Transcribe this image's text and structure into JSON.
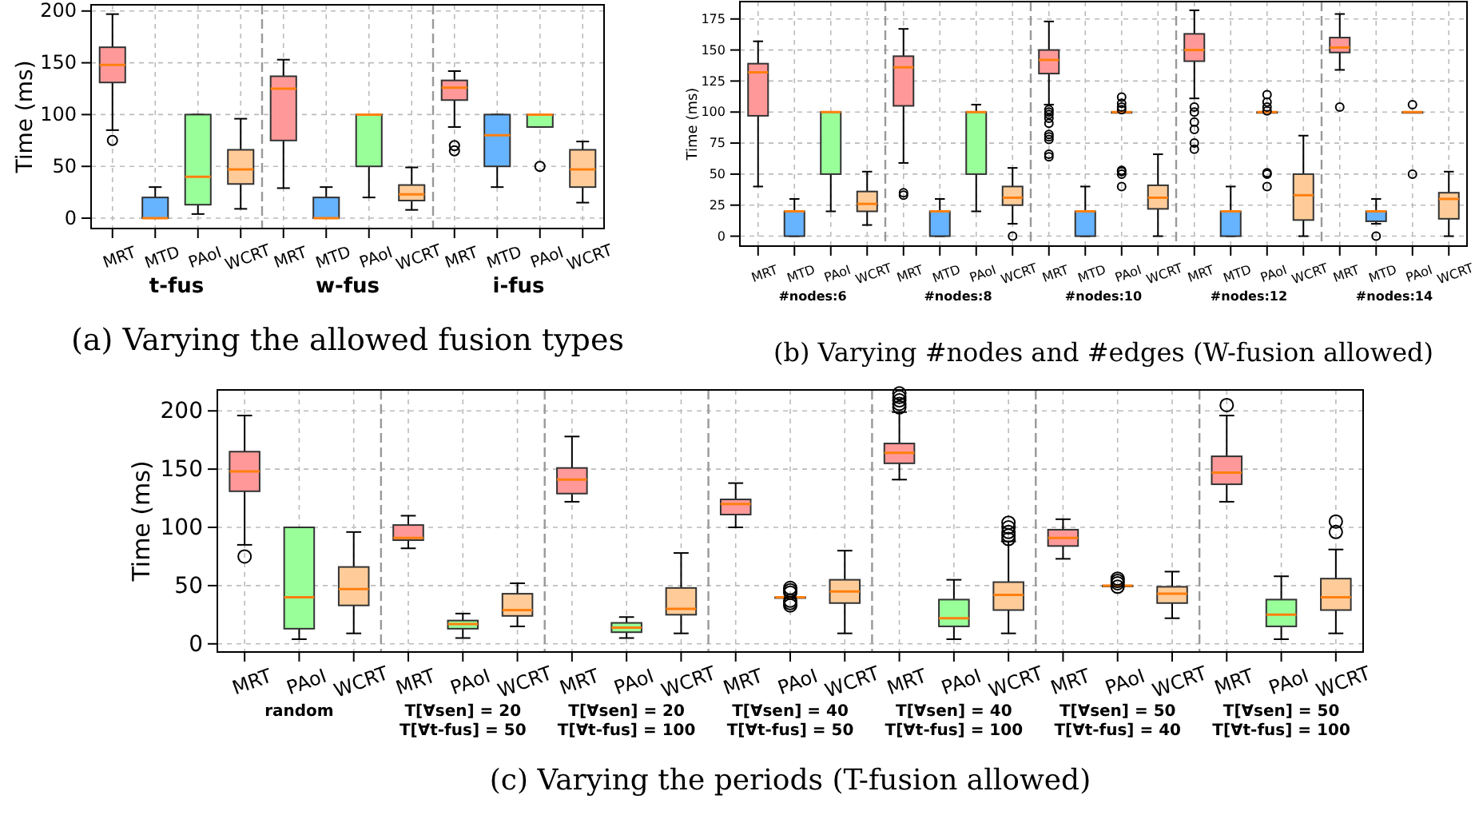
{
  "chart_data": [
    {
      "type": "box",
      "title": "(a) Varying the allowed fusion types",
      "ylabel": "Time (ms)",
      "ylim": [
        -10,
        206
      ],
      "yticks": [
        0,
        50,
        100,
        150,
        200
      ],
      "grid": true,
      "categories": [
        "MRT",
        "MTD",
        "PAoI",
        "WCRT",
        "MRT",
        "MTD",
        "PAoI",
        "WCRT",
        "MRT",
        "MTD",
        "PAoI",
        "WCRT"
      ],
      "colors": [
        "#ff9999",
        "#66b3ff",
        "#99ff99",
        "#ffcc99",
        "#ff9999",
        "#66b3ff",
        "#99ff99",
        "#ffcc99",
        "#ff9999",
        "#66b3ff",
        "#99ff99",
        "#ffcc99"
      ],
      "annotations": [
        "t-fus",
        "w-fus",
        "i-fus"
      ],
      "boxes": [
        {
          "low": 85,
          "q1": 131,
          "median": 148,
          "q3": 165,
          "high": 197,
          "outliers": [
            75
          ]
        },
        {
          "low": 0,
          "q1": 0,
          "median": 0,
          "q3": 20,
          "high": 30
        },
        {
          "low": 4,
          "q1": 13,
          "median": 40,
          "q3": 100,
          "high": 100
        },
        {
          "low": 9,
          "q1": 33,
          "median": 47,
          "q3": 66,
          "high": 96
        },
        {
          "low": 29,
          "q1": 75,
          "median": 125,
          "q3": 137,
          "high": 153
        },
        {
          "low": 0,
          "q1": 0,
          "median": 0,
          "q3": 20,
          "high": 30
        },
        {
          "low": 20,
          "q1": 50,
          "median": 100,
          "q3": 100,
          "high": 100
        },
        {
          "low": 8,
          "q1": 17,
          "median": 23,
          "q3": 32,
          "high": 49
        },
        {
          "low": 88,
          "q1": 114,
          "median": 126,
          "q3": 133,
          "high": 142,
          "outliers": [
            65,
            70
          ]
        },
        {
          "low": 30,
          "q1": 50,
          "median": 80,
          "q3": 100,
          "high": 100
        },
        {
          "low": 88,
          "q1": 88,
          "median": 100,
          "q3": 100,
          "high": 100,
          "outliers": [
            50
          ]
        },
        {
          "low": 15,
          "q1": 30,
          "median": 47,
          "q3": 66,
          "high": 74
        }
      ]
    },
    {
      "type": "box",
      "title": "(b) Varying #nodes and #edges (W-fusion allowed)",
      "ylabel": "Time (ms)",
      "ylim": [
        -8,
        189
      ],
      "yticks": [
        0,
        25,
        50,
        75,
        100,
        125,
        150,
        175
      ],
      "grid": true,
      "categories": [
        "MRT",
        "MTD",
        "PAoI",
        "WCRT",
        "MRT",
        "MTD",
        "PAoI",
        "WCRT",
        "MRT",
        "MTD",
        "PAoI",
        "WCRT",
        "MRT",
        "MTD",
        "PAoI",
        "WCRT",
        "MRT",
        "MTD",
        "PAoI",
        "WCRT"
      ],
      "colors": [
        "#ff9999",
        "#66b3ff",
        "#99ff99",
        "#ffcc99",
        "#ff9999",
        "#66b3ff",
        "#99ff99",
        "#ffcc99",
        "#ff9999",
        "#66b3ff",
        "#99ff99",
        "#ffcc99",
        "#ff9999",
        "#66b3ff",
        "#99ff99",
        "#ffcc99",
        "#ff9999",
        "#66b3ff",
        "#99ff99",
        "#ffcc99"
      ],
      "annotations": [
        "#nodes:6",
        "#nodes:8",
        "#nodes:10",
        "#nodes:12",
        "#nodes:14"
      ],
      "boxes": [
        {
          "low": 40,
          "q1": 97,
          "median": 132,
          "q3": 139,
          "high": 157
        },
        {
          "low": 0,
          "q1": 0,
          "median": 20,
          "q3": 20,
          "high": 30
        },
        {
          "low": 20,
          "q1": 50,
          "median": 100,
          "q3": 100,
          "high": 100
        },
        {
          "low": 9,
          "q1": 20,
          "median": 26,
          "q3": 36,
          "high": 52
        },
        {
          "low": 59,
          "q1": 105,
          "median": 136,
          "q3": 145,
          "high": 167,
          "outliers": [
            33,
            35
          ]
        },
        {
          "low": 0,
          "q1": 0,
          "median": 20,
          "q3": 20,
          "high": 30
        },
        {
          "low": 20,
          "q1": 50,
          "median": 100,
          "q3": 100,
          "high": 106
        },
        {
          "low": 10,
          "q1": 25,
          "median": 31,
          "q3": 40,
          "high": 55,
          "outliers": [
            0
          ]
        },
        {
          "low": 106,
          "q1": 131,
          "median": 142,
          "q3": 150,
          "high": 173,
          "outliers": [
            64,
            66,
            78,
            80,
            82,
            91,
            95,
            98,
            100,
            102
          ]
        },
        {
          "low": 0,
          "q1": 0,
          "median": 20,
          "q3": 20,
          "high": 40
        },
        {
          "low": 100,
          "q1": 100,
          "median": 100,
          "q3": 100,
          "high": 100,
          "outliers": [
            40,
            50,
            52,
            53,
            102,
            104,
            107,
            112
          ]
        },
        {
          "low": 0,
          "q1": 22,
          "median": 31,
          "q3": 41,
          "high": 66
        },
        {
          "low": 111,
          "q1": 141,
          "median": 150,
          "q3": 163,
          "high": 182,
          "outliers": [
            70,
            75,
            86,
            92,
            100,
            104
          ]
        },
        {
          "low": 0,
          "q1": 0,
          "median": 20,
          "q3": 20,
          "high": 40
        },
        {
          "low": 100,
          "q1": 100,
          "median": 100,
          "q3": 100,
          "high": 100,
          "outliers": [
            40,
            50,
            51,
            101,
            104,
            108,
            114
          ]
        },
        {
          "low": 0,
          "q1": 13,
          "median": 33,
          "q3": 50,
          "high": 81
        },
        {
          "low": 134,
          "q1": 148,
          "median": 152,
          "q3": 160,
          "high": 179,
          "outliers": [
            104
          ]
        },
        {
          "low": 10,
          "q1": 12,
          "median": 20,
          "q3": 20,
          "high": 30,
          "outliers": [
            0
          ]
        },
        {
          "low": 100,
          "q1": 100,
          "median": 100,
          "q3": 100,
          "high": 100,
          "outliers": [
            50,
            106
          ]
        },
        {
          "low": 0,
          "q1": 14,
          "median": 30,
          "q3": 35,
          "high": 52
        }
      ]
    },
    {
      "type": "box",
      "title": "(c) Varying the periods (T-fusion allowed)",
      "ylabel": "Time (ms)",
      "ylim": [
        -7,
        218
      ],
      "yticks": [
        0,
        50,
        100,
        150,
        200
      ],
      "grid": true,
      "categories": [
        "MRT",
        "PAoI",
        "WCRT",
        "MRT",
        "PAoI",
        "WCRT",
        "MRT",
        "PAoI",
        "WCRT",
        "MRT",
        "PAoI",
        "WCRT",
        "MRT",
        "PAoI",
        "WCRT",
        "MRT",
        "PAoI",
        "WCRT",
        "MRT",
        "PAoI",
        "WCRT"
      ],
      "colors": [
        "#ff9999",
        "#99ff99",
        "#ffcc99",
        "#ff9999",
        "#99ff99",
        "#ffcc99",
        "#ff9999",
        "#99ff99",
        "#ffcc99",
        "#ff9999",
        "#99ff99",
        "#ffcc99",
        "#ff9999",
        "#99ff99",
        "#ffcc99",
        "#ff9999",
        "#99ff99",
        "#ffcc99",
        "#ff9999",
        "#99ff99",
        "#ffcc99"
      ],
      "annotations": [
        "random",
        "T[∀sen] = 20\nT[∀t-fus] = 50",
        "T[∀sen] = 20\nT[∀t-fus] = 100",
        "T[∀sen] = 40\nT[∀t-fus] = 50",
        "T[∀sen] = 40\nT[∀t-fus] = 100",
        "T[∀sen] = 50\nT[∀t-fus] = 40",
        "T[∀sen] = 50\nT[∀t-fus] = 100"
      ],
      "boxes": [
        {
          "low": 85,
          "q1": 131,
          "median": 148,
          "q3": 165,
          "high": 196,
          "outliers": [
            75
          ]
        },
        {
          "low": 4,
          "q1": 13,
          "median": 40,
          "q3": 100,
          "high": 100
        },
        {
          "low": 9,
          "q1": 33,
          "median": 47,
          "q3": 66,
          "high": 96
        },
        {
          "low": 82,
          "q1": 89,
          "median": 91,
          "q3": 102,
          "high": 110
        },
        {
          "low": 5,
          "q1": 13,
          "median": 17,
          "q3": 20,
          "high": 26
        },
        {
          "low": 15,
          "q1": 24,
          "median": 29,
          "q3": 43,
          "high": 52
        },
        {
          "low": 122,
          "q1": 129,
          "median": 141,
          "q3": 151,
          "high": 178
        },
        {
          "low": 5,
          "q1": 10,
          "median": 14,
          "q3": 18,
          "high": 23
        },
        {
          "low": 9,
          "q1": 25,
          "median": 30,
          "q3": 48,
          "high": 78
        },
        {
          "low": 100,
          "q1": 111,
          "median": 120,
          "q3": 124,
          "high": 138
        },
        {
          "low": 40,
          "q1": 40,
          "median": 40,
          "q3": 40,
          "high": 40,
          "outliers": [
            33,
            35,
            37,
            44,
            46,
            48
          ]
        },
        {
          "low": 9,
          "q1": 35,
          "median": 45,
          "q3": 55,
          "high": 80
        },
        {
          "low": 141,
          "q1": 155,
          "median": 164,
          "q3": 172,
          "high": 199,
          "outliers": [
            203,
            206,
            209,
            212,
            215
          ]
        },
        {
          "low": 4,
          "q1": 15,
          "median": 22,
          "q3": 38,
          "high": 55
        },
        {
          "low": 9,
          "q1": 29,
          "median": 42,
          "q3": 53,
          "high": 88,
          "outliers": [
            90,
            93,
            96,
            100,
            104
          ]
        },
        {
          "low": 73,
          "q1": 84,
          "median": 91,
          "q3": 98,
          "high": 107
        },
        {
          "low": 50,
          "q1": 50,
          "median": 50,
          "q3": 50,
          "high": 50,
          "outliers": [
            49,
            52,
            54,
            56
          ]
        },
        {
          "low": 22,
          "q1": 35,
          "median": 43,
          "q3": 49,
          "high": 62
        },
        {
          "low": 122,
          "q1": 137,
          "median": 147,
          "q3": 161,
          "high": 196,
          "outliers": [
            205
          ]
        },
        {
          "low": 4,
          "q1": 15,
          "median": 25,
          "q3": 38,
          "high": 58
        },
        {
          "low": 9,
          "q1": 29,
          "median": 40,
          "q3": 56,
          "high": 81,
          "outliers": [
            96,
            105
          ]
        }
      ]
    }
  ]
}
